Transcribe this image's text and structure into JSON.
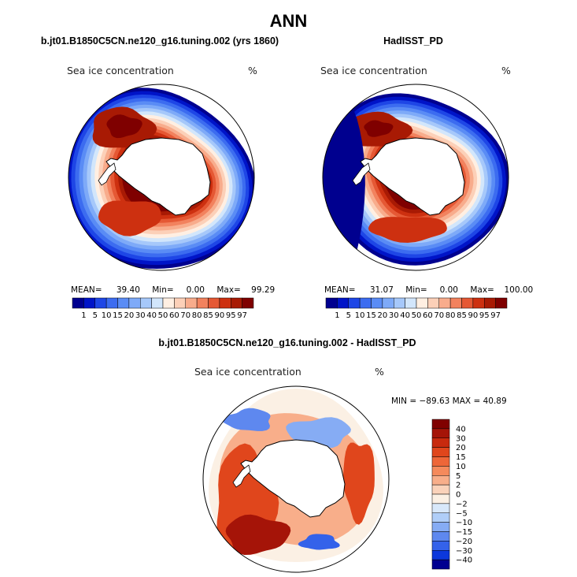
{
  "figure_title": "ANN",
  "colors": {
    "land": "#ffffff",
    "coast": "#000000",
    "frame": "#000000"
  },
  "icons": [
    "polar-map-icon",
    "colorbar-icon"
  ],
  "panels": [
    {
      "title": "b.jt01.B1850C5CN.ne120_g16.tuning.002 (yrs 1860)",
      "variable": "Sea ice concentration",
      "units": "%",
      "stats": {
        "mean_label": "MEAN=",
        "mean": "39.40",
        "min_label": "Min=",
        "min": "0.00",
        "max_label": "Max=",
        "max": "99.29"
      }
    },
    {
      "title": "HadISST_PD",
      "variable": "Sea ice concentration",
      "units": "%",
      "stats": {
        "mean_label": "MEAN=",
        "mean": "31.07",
        "min_label": "Min=",
        "min": "0.00",
        "max_label": "Max=",
        "max": "100.00"
      }
    },
    {
      "title": "b.jt01.B1850C5CN.ne120_g16.tuning.002 - HadISST_PD",
      "variable": "Sea ice concentration",
      "units": "%",
      "stats_text": "MIN = −89.63  MAX =  40.89"
    }
  ],
  "chart_data": [
    {
      "type": "heatmap",
      "title": "b.jt01.B1850C5CN.ne120_g16.tuning.002 (yrs 1860)",
      "variable": "Sea ice concentration",
      "units": "%",
      "projection": "south polar stereographic",
      "mean": 39.4,
      "min": 0.0,
      "max": 99.29,
      "colorbar": {
        "levels": [
          "1",
          "5",
          "10",
          "15",
          "20",
          "30",
          "40",
          "50",
          "60",
          "70",
          "80",
          "85",
          "90",
          "95",
          "97"
        ],
        "colors": [
          "#00008f",
          "#0014c8",
          "#1e46e6",
          "#3c6cf0",
          "#5a8cf5",
          "#7eaaf8",
          "#a6c8fa",
          "#d2e6fb",
          "#ffefe2",
          "#fcd0b8",
          "#f8ac8c",
          "#f2825e",
          "#e55834",
          "#cd3010",
          "#a81a04",
          "#7f0000"
        ]
      }
    },
    {
      "type": "heatmap",
      "title": "HadISST_PD",
      "variable": "Sea ice concentration",
      "units": "%",
      "projection": "south polar stereographic",
      "mean": 31.07,
      "min": 0.0,
      "max": 100.0,
      "colorbar": {
        "levels": [
          "1",
          "5",
          "10",
          "15",
          "20",
          "30",
          "40",
          "50",
          "60",
          "70",
          "80",
          "85",
          "90",
          "95",
          "97"
        ],
        "colors": [
          "#00008f",
          "#0014c8",
          "#1e46e6",
          "#3c6cf0",
          "#5a8cf5",
          "#7eaaf8",
          "#a6c8fa",
          "#d2e6fb",
          "#ffefe2",
          "#fcd0b8",
          "#f8ac8c",
          "#f2825e",
          "#e55834",
          "#cd3010",
          "#a81a04",
          "#7f0000"
        ]
      }
    },
    {
      "type": "heatmap",
      "title": "b.jt01.B1850C5CN.ne120_g16.tuning.002 - HadISST_PD",
      "variable": "Sea ice concentration",
      "units": "%",
      "projection": "south polar stereographic",
      "min": -89.63,
      "max": 40.89,
      "colorbar": {
        "levels": [
          "40",
          "30",
          "20",
          "15",
          "10",
          "5",
          "2",
          "0",
          "−2",
          "−5",
          "−10",
          "−15",
          "−20",
          "−30",
          "−40"
        ],
        "colors": [
          "#800000",
          "#a51408",
          "#c82a0e",
          "#e0461c",
          "#ee6638",
          "#f58a5c",
          "#f8ae8a",
          "#fad2ba",
          "#fbf0e4",
          "#d8e8fa",
          "#b0cef8",
          "#86acf4",
          "#5e88ef",
          "#3462ea",
          "#0c38dc",
          "#000090"
        ]
      }
    }
  ]
}
